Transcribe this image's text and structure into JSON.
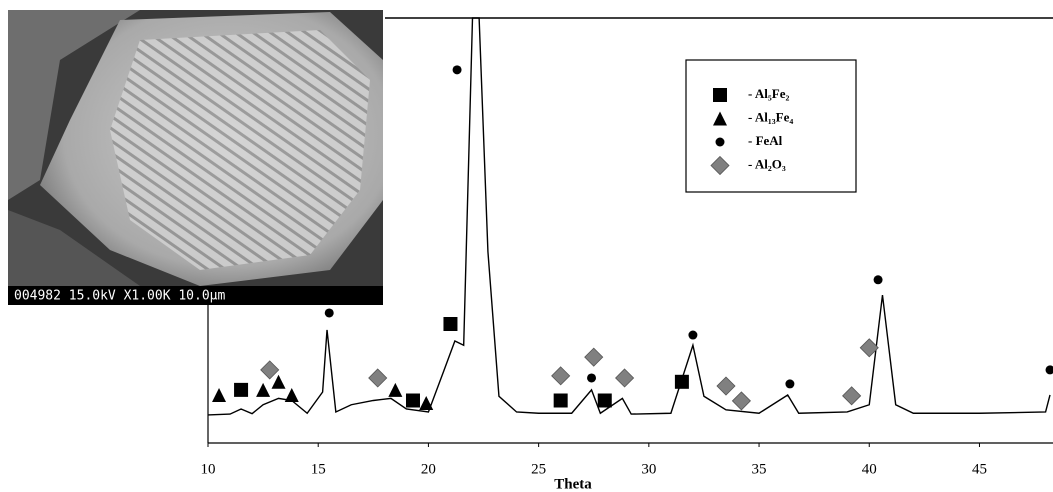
{
  "chart_data": {
    "type": "line",
    "x_label": "Theta",
    "xlim": [
      10,
      48.2
    ],
    "xticks": [
      10,
      15,
      20,
      25,
      30,
      35,
      40,
      45
    ],
    "ylim": [
      0,
      100
    ],
    "line_color": "#000000",
    "x": [
      10,
      11,
      11.5,
      12,
      12.5,
      13.2,
      13.8,
      14.5,
      15.2,
      15.4,
      15.8,
      16.5,
      17.5,
      18.3,
      19,
      20,
      20.7,
      21.2,
      21.6,
      22.0,
      22.3,
      22.7,
      23.2,
      24,
      25,
      26.5,
      27.4,
      27.8,
      28.8,
      29.2,
      31,
      32,
      32.5,
      33.5,
      35,
      36.3,
      36.8,
      39,
      40,
      40.6,
      41.2,
      42,
      45,
      48,
      48.2
    ],
    "values": [
      6.6,
      6.8,
      8,
      6.9,
      9,
      10.5,
      10,
      7,
      12,
      26.6,
      7.3,
      9,
      10,
      10.5,
      8,
      7.3,
      17,
      24,
      23,
      100,
      100,
      45,
      11,
      7.3,
      7,
      7,
      12.5,
      7,
      10.5,
      6.8,
      7,
      23,
      11,
      7.8,
      7,
      11.3,
      7,
      7.3,
      9,
      34.8,
      9,
      7,
      7,
      7.3,
      11.3
    ],
    "series": [
      {
        "name": "- Al₅Fe₂",
        "marker": "square",
        "color": "#000000",
        "x": [
          11.5,
          19.3,
          21.0,
          26.0,
          28.0,
          31.5
        ],
        "values": [
          12.5,
          10,
          28,
          10,
          10,
          14.4
        ]
      },
      {
        "name": "- Al₁₃Fe₄",
        "marker": "triangle",
        "color": "#000000",
        "x": [
          10.5,
          12.5,
          13.2,
          13.8,
          18.5,
          19.9
        ],
        "values": [
          11.3,
          12.5,
          14.4,
          11.3,
          12.5,
          9.4
        ]
      },
      {
        "name": "- FeAl",
        "marker": "circle",
        "color": "#000000",
        "x": [
          15.5,
          21.3,
          27.4,
          32.0,
          36.4,
          40.4,
          48.2
        ],
        "values": [
          30.6,
          87.8,
          15.3,
          25.4,
          13.9,
          38.4,
          17.2
        ]
      },
      {
        "name": "- Al₂O₃",
        "marker": "diamond",
        "color": "#808080",
        "x": [
          12.8,
          17.7,
          26.0,
          27.5,
          28.9,
          33.5,
          34.2,
          39.2,
          40.0
        ],
        "values": [
          17.2,
          15.3,
          15.8,
          20.2,
          15.3,
          13.4,
          9.9,
          11.1,
          22.4
        ]
      }
    ]
  },
  "inset": {
    "caption": "004982  15.0kV  X1.00K  10.0µm"
  }
}
